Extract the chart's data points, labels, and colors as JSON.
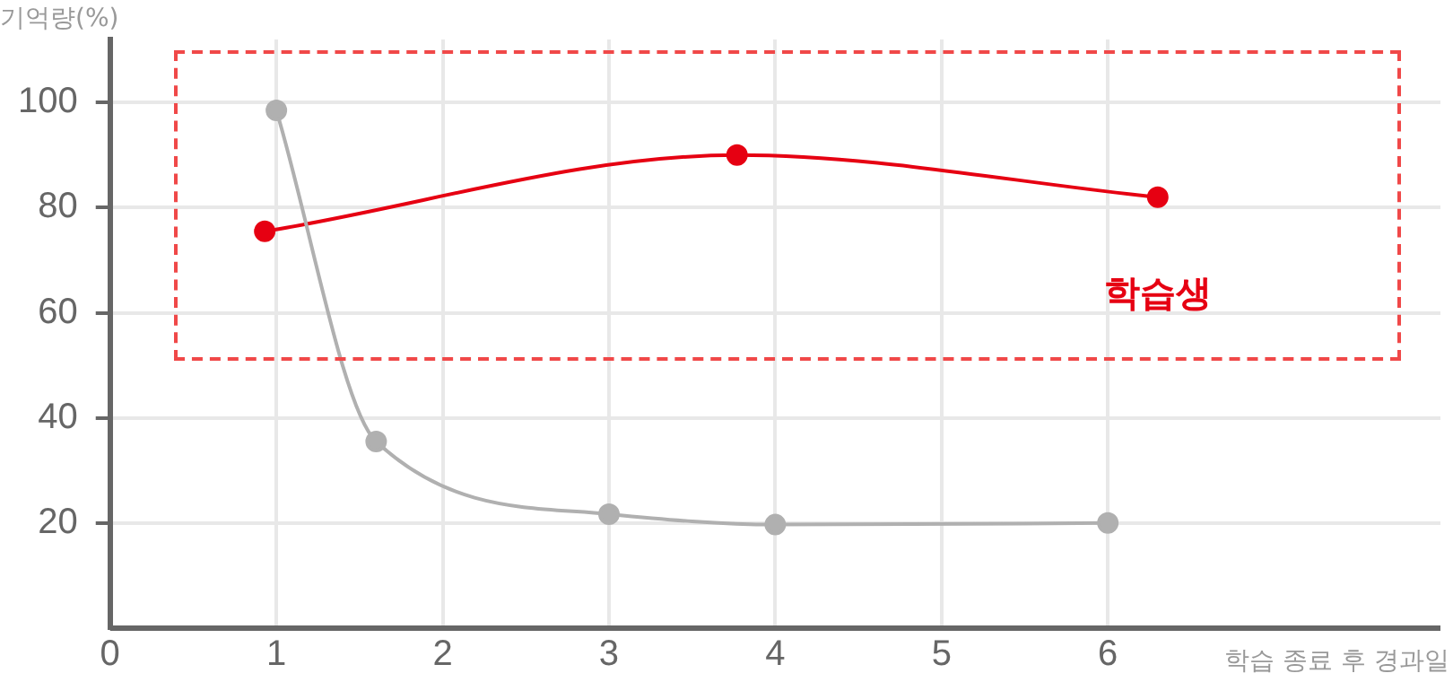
{
  "chart_data": {
    "type": "line",
    "ylabel": "기억량(%)",
    "xlabel": "학습 종료 후 경과일",
    "xlim": [
      0,
      8
    ],
    "xticks": [
      0,
      1,
      2,
      3,
      4,
      5,
      6
    ],
    "ylim": [
      0,
      112
    ],
    "yticks": [
      20,
      40,
      60,
      80,
      100
    ],
    "grid": true,
    "legend": false,
    "marker": "circle",
    "line_style": "solid",
    "series": [
      {
        "color": "#b0b0b0",
        "x": [
          1,
          1.6,
          3,
          4,
          6
        ],
        "values": [
          98.5,
          35.5,
          21.7,
          19.7,
          20
        ]
      },
      {
        "name": "학습생",
        "color": "#e60012",
        "x": [
          0.93,
          3.77,
          6.3
        ],
        "values": [
          75.5,
          90,
          82
        ]
      }
    ]
  }
}
